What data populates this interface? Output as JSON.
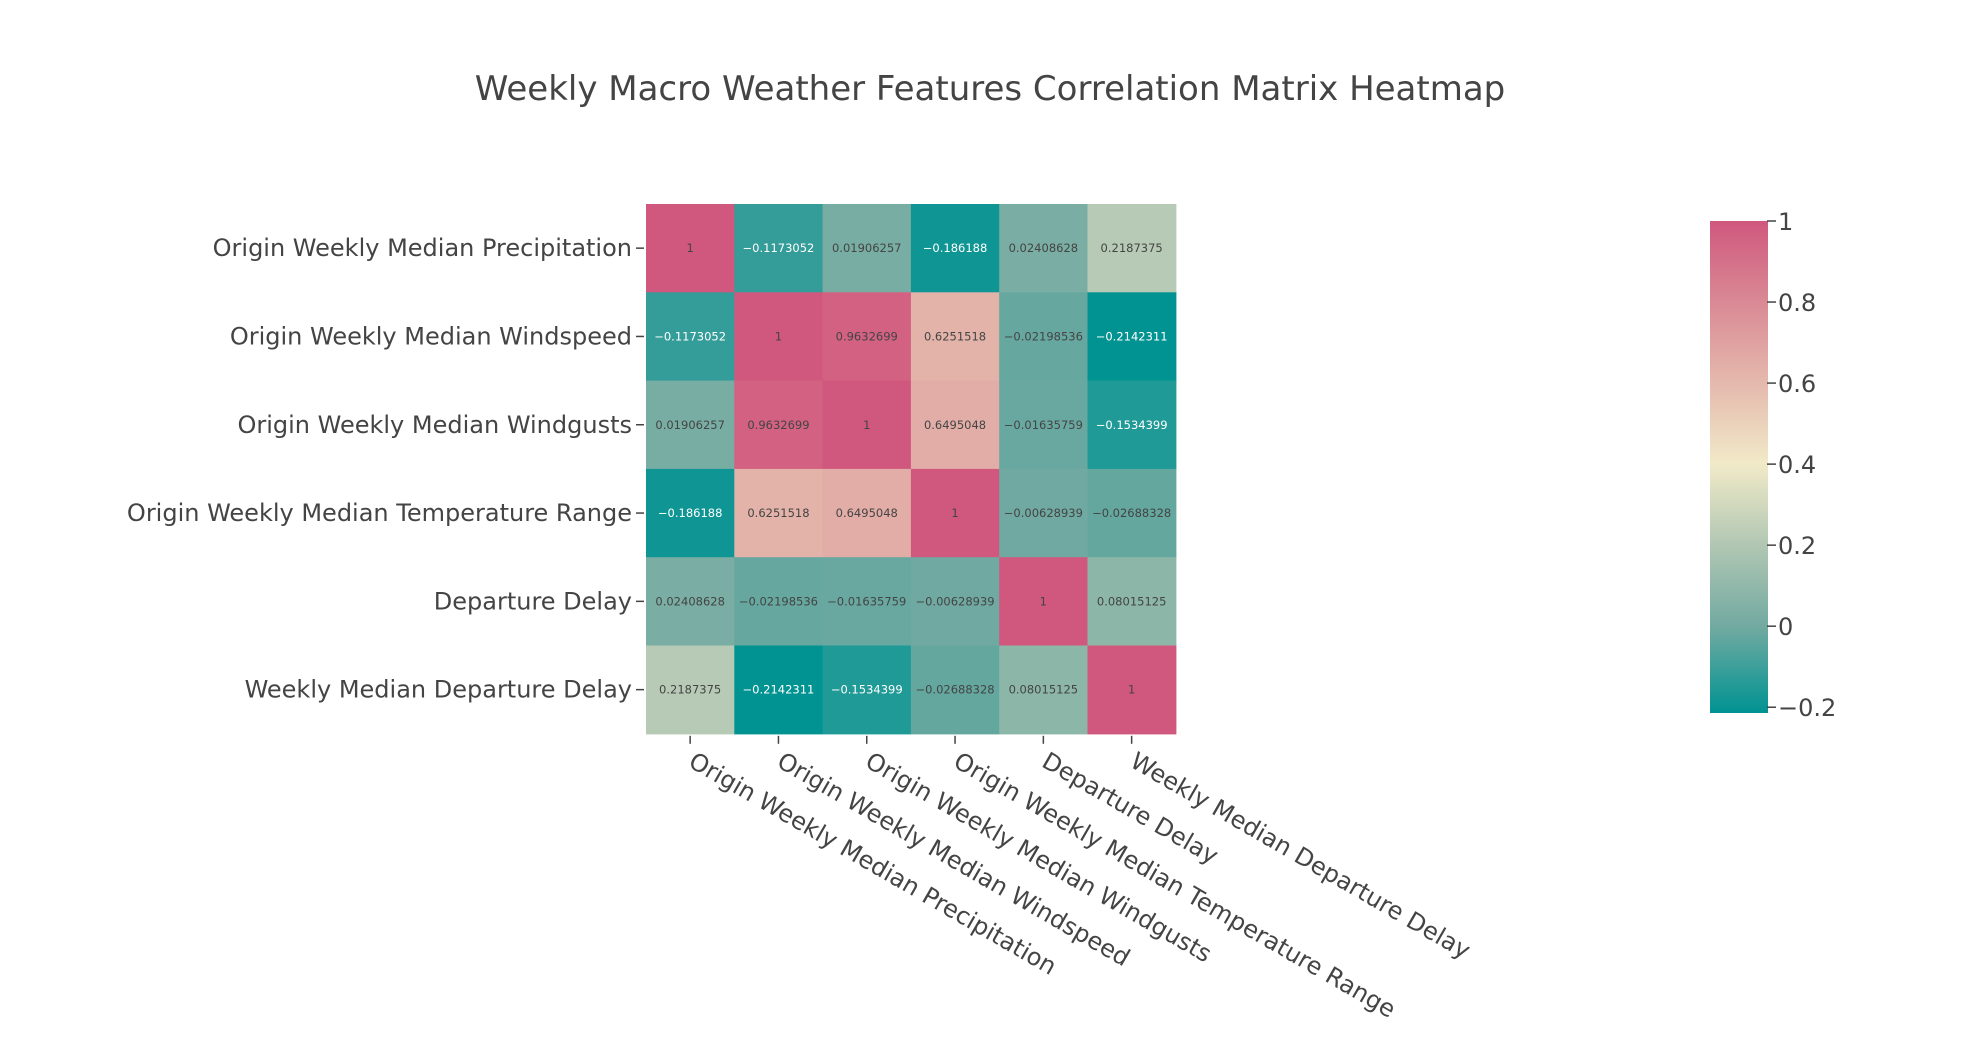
{
  "chart_data": {
    "type": "heatmap",
    "title": "Weekly Macro Weather Features Correlation Matrix Heatmap",
    "x_categories": [
      "Origin Weekly Median Precipitation",
      "Origin Weekly Median Windspeed",
      "Origin Weekly Median Windgusts",
      "Origin Weekly Median Temperature Range",
      "Departure Delay",
      "Weekly Median Departure Delay"
    ],
    "y_categories": [
      "Origin Weekly Median Precipitation",
      "Origin Weekly Median Windspeed",
      "Origin Weekly Median Windgusts",
      "Origin Weekly Median Temperature Range",
      "Departure Delay",
      "Weekly Median Departure Delay"
    ],
    "values": [
      [
        1,
        -0.1173052,
        0.01906257,
        -0.186188,
        0.02408628,
        0.2187375
      ],
      [
        -0.1173052,
        1,
        0.9632699,
        0.6251518,
        -0.02198536,
        -0.2142311
      ],
      [
        0.01906257,
        0.9632699,
        1,
        0.6495048,
        -0.01635759,
        -0.1534399
      ],
      [
        -0.186188,
        0.6251518,
        0.6495048,
        1,
        -0.00628939,
        -0.02688328
      ],
      [
        0.02408628,
        -0.02198536,
        -0.01635759,
        -0.00628939,
        1,
        0.08015125
      ],
      [
        0.2187375,
        -0.2142311,
        -0.1534399,
        -0.02688328,
        0.08015125,
        1
      ]
    ],
    "cell_text": [
      [
        "1",
        "−0.1173052",
        "0.01906257",
        "−0.186188",
        "0.02408628",
        "0.2187375"
      ],
      [
        "−0.1173052",
        "1",
        "0.9632699",
        "0.6251518",
        "−0.02198536",
        "−0.2142311"
      ],
      [
        "0.01906257",
        "0.9632699",
        "1",
        "0.6495048",
        "−0.01635759",
        "−0.1534399"
      ],
      [
        "−0.186188",
        "0.6251518",
        "0.6495048",
        "1",
        "−0.00628939",
        "−0.02688328"
      ],
      [
        "0.02408628",
        "−0.02198536",
        "−0.01635759",
        "−0.00628939",
        "1",
        "0.08015125"
      ],
      [
        "0.2187375",
        "−0.2142311",
        "−0.1534399",
        "−0.02688328",
        "0.08015125",
        "1"
      ]
    ],
    "colorscale": [
      [
        -0.2142311,
        "#009392"
      ],
      [
        0.0,
        "#72aaa1"
      ],
      [
        0.2,
        "#b1c7b3"
      ],
      [
        0.4,
        "#f1eac8"
      ],
      [
        0.6,
        "#e5b9ad"
      ],
      [
        0.8,
        "#d98994"
      ],
      [
        1.0,
        "#d0587e"
      ]
    ],
    "colorbar": {
      "range": [
        -0.2142311,
        1
      ],
      "ticks": [
        1,
        0.8,
        0.6,
        0.4,
        0.2,
        0,
        -0.2
      ],
      "tick_labels": [
        "1",
        "0.8",
        "0.6",
        "0.4",
        "0.2",
        "0",
        "−0.2"
      ]
    },
    "text_color_dark": "#444444",
    "text_color_light": "#ffffff",
    "title_color": "#444444",
    "tick_label_color": "#444444"
  }
}
